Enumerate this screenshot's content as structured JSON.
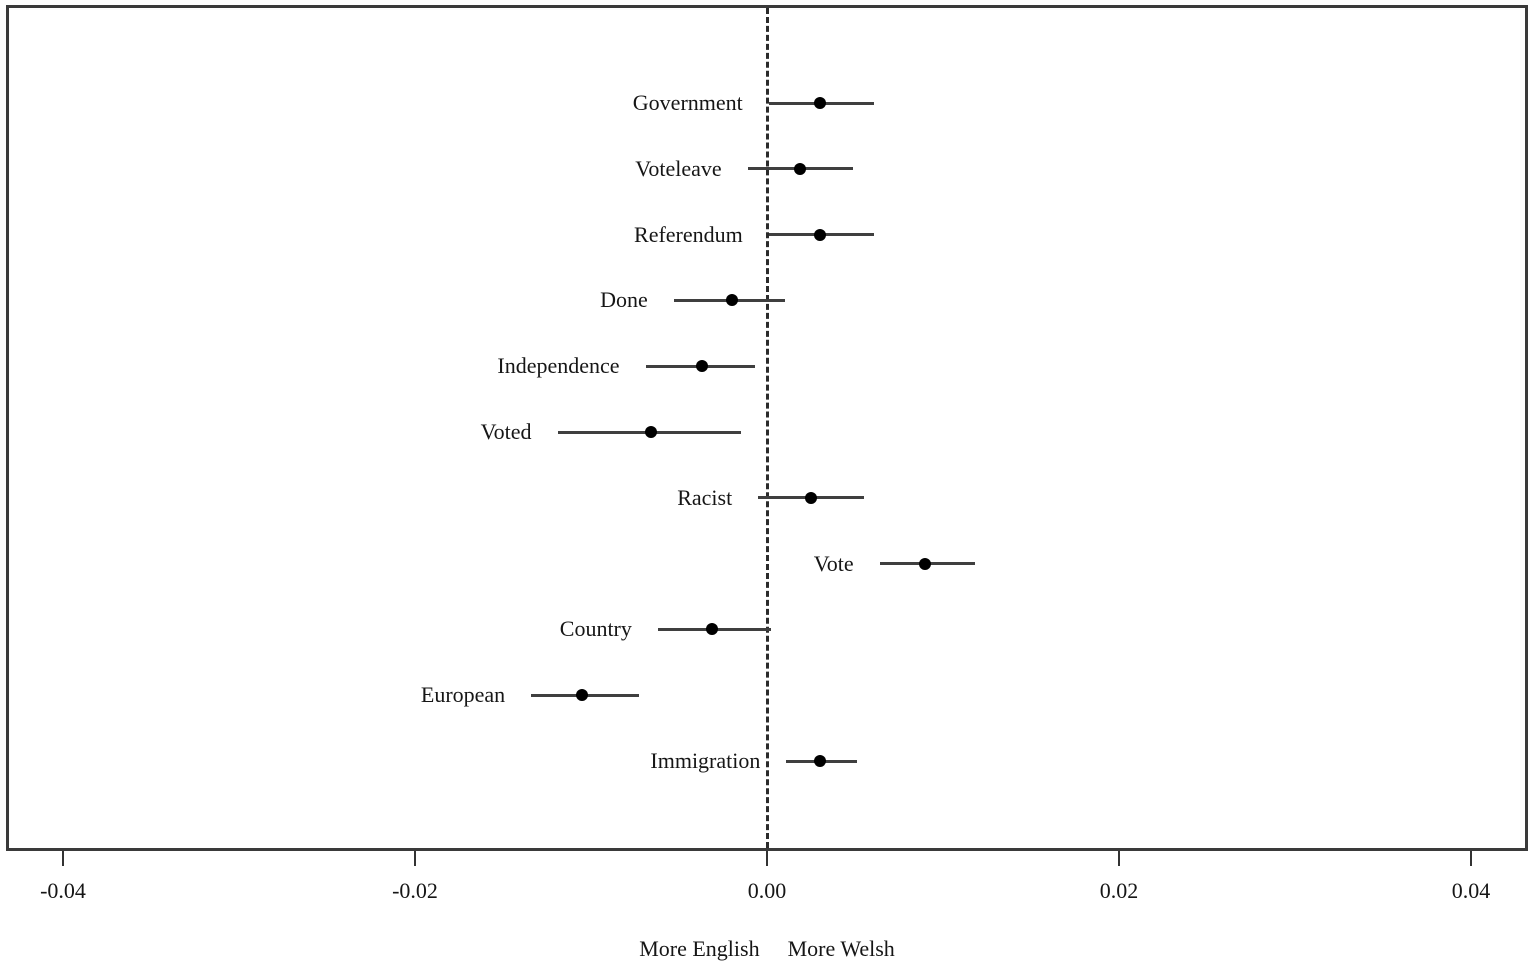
{
  "chart_data": {
    "type": "scatter",
    "subtype": "dot-and-whisker coefficient plot",
    "title": "",
    "xlabel_left": "More English",
    "xlabel_right": "More Welsh",
    "xlim": [
      -0.0432,
      0.0432
    ],
    "x_ticks": [
      -0.04,
      -0.02,
      0.0,
      0.02,
      0.04
    ],
    "x_tick_labels": [
      "-0.04",
      "-0.02",
      "0.00",
      "0.02",
      "0.04"
    ],
    "zero_reference_line": 0.0,
    "grid": "off",
    "legend": "none",
    "series": [
      {
        "label": "Government",
        "estimate": 0.003,
        "ci_low": 0.0001,
        "ci_high": 0.0061
      },
      {
        "label": "Voteleave",
        "estimate": 0.0019,
        "ci_low": -0.0011,
        "ci_high": 0.0049
      },
      {
        "label": "Referendum",
        "estimate": 0.003,
        "ci_low": 0.0001,
        "ci_high": 0.0061
      },
      {
        "label": "Done",
        "estimate": -0.002,
        "ci_low": -0.0053,
        "ci_high": 0.001
      },
      {
        "label": "Independence",
        "estimate": -0.0037,
        "ci_low": -0.0069,
        "ci_high": -0.0007
      },
      {
        "label": "Voted",
        "estimate": -0.0066,
        "ci_low": -0.0119,
        "ci_high": -0.0015
      },
      {
        "label": "Racist",
        "estimate": 0.0025,
        "ci_low": -0.0005,
        "ci_high": 0.0055
      },
      {
        "label": "Vote",
        "estimate": 0.009,
        "ci_low": 0.0064,
        "ci_high": 0.0118
      },
      {
        "label": "Country",
        "estimate": -0.0031,
        "ci_low": -0.0062,
        "ci_high": 0.0002
      },
      {
        "label": "European",
        "estimate": -0.0105,
        "ci_low": -0.0134,
        "ci_high": -0.0073
      },
      {
        "label": "Immigration",
        "estimate": 0.003,
        "ci_low": 0.0011,
        "ci_high": 0.0051
      }
    ]
  },
  "colors": {
    "background": "#ffffff",
    "frame_border": "#3a3a3a",
    "ci_line": "#3f3f3f",
    "dot": "#000000",
    "text": "#161616",
    "zero_line": "#2b2b2b"
  }
}
